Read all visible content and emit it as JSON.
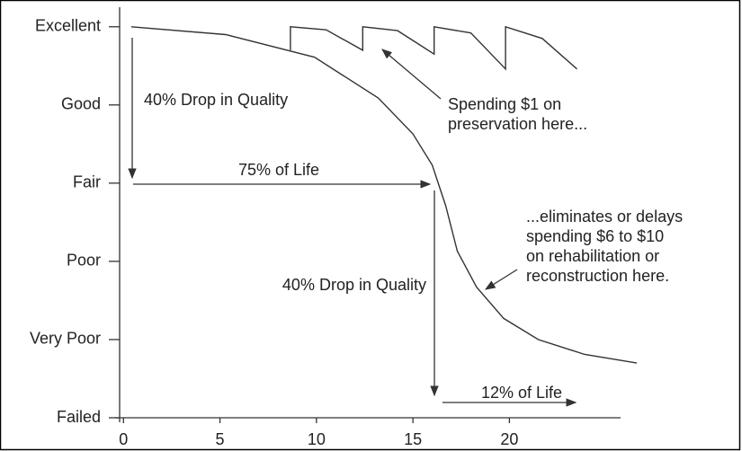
{
  "chart_data": {
    "type": "line",
    "xlim": [
      -0.2,
      26.6
    ],
    "xticks": [
      0,
      5,
      10,
      15,
      20
    ],
    "ylim": [
      0,
      5.25
    ],
    "yticks": [
      {
        "value": 5,
        "label": "Excellent"
      },
      {
        "value": 4,
        "label": "Good"
      },
      {
        "value": 3,
        "label": "Fair"
      },
      {
        "value": 2,
        "label": "Poor"
      },
      {
        "value": 1,
        "label": "Very Poor"
      },
      {
        "value": 0,
        "label": "Failed"
      }
    ],
    "series": [
      {
        "color": "#333333",
        "x": [
          0.4,
          5.3,
          9.9,
          13.2,
          15.0,
          16.0,
          16.7,
          17.3,
          18.3,
          19.7,
          21.5,
          23.9,
          26.6
        ],
        "values": [
          5.0,
          4.9,
          4.61,
          4.09,
          3.63,
          3.23,
          2.71,
          2.13,
          1.67,
          1.27,
          1.0,
          0.81,
          0.7
        ]
      },
      {
        "color": "#333333",
        "x": [
          8.65,
          8.65,
          10.5,
          12.4,
          12.4,
          14.2,
          16.1,
          16.1,
          18.0,
          19.8,
          19.8,
          21.7,
          23.5
        ],
        "values": [
          4.7,
          5.0,
          4.96,
          4.7,
          5.0,
          4.95,
          4.65,
          5.0,
          4.92,
          4.46,
          5.0,
          4.85,
          4.46
        ]
      }
    ],
    "annotations": [
      {
        "lines": [
          "40% Drop in Quality"
        ]
      },
      {
        "lines": [
          "75% of Life"
        ]
      },
      {
        "lines": [
          "40% Drop in Quality"
        ]
      },
      {
        "lines": [
          "12% of Life"
        ]
      },
      {
        "lines": [
          "Spending $1 on",
          "preservation here..."
        ]
      },
      {
        "lines": [
          "...eliminates or delays",
          "spending $6 to $10",
          "on rehabilitation or",
          "reconstruction here."
        ]
      }
    ]
  }
}
